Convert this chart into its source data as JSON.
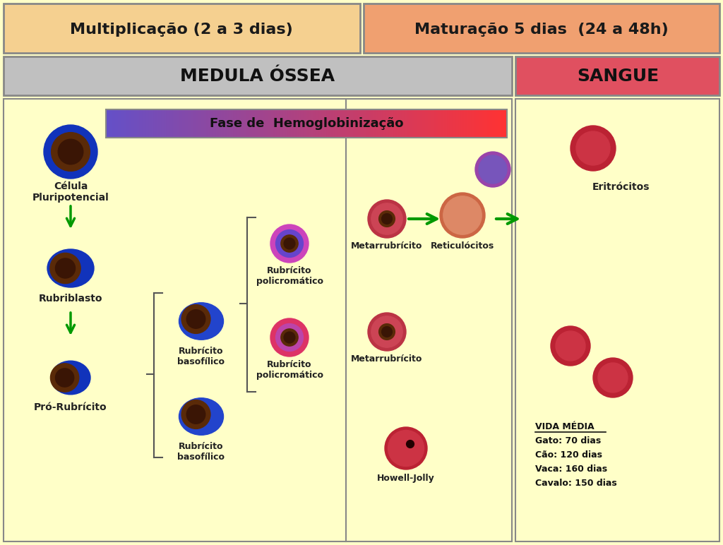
{
  "bg_color": "#FFFFC8",
  "outer_bg": "#FFFFC8",
  "title_left": "Multiplicação (2 a 3 dias)",
  "title_right": "Maturação 5 dias  (24 a 48h)",
  "title_left_bg": "#F5D090",
  "title_right_bg": "#F0A070",
  "header_left": "MEDULA ÓSSEA",
  "header_right": "SANGUE",
  "header_left_bg": "#C0C0C0",
  "header_right_bg": "#E05060",
  "hemo_label": "Fase de  Hemoglobinização",
  "vida_media_title": "VIDA MÉDIA",
  "vida_media_lines": [
    "Gato: 70 dias",
    "Cão: 120 dias",
    "Vaca: 160 dias",
    "Cavalo: 150 dias"
  ],
  "cell_labels": {
    "celula": "Célula\nPluripotencial",
    "rubriblasto": "Rubriblasto",
    "pro_rubricito": "Pró-Rubrícito",
    "rubricito_basof1": "Rubrícito\nbasofílico",
    "rubricito_basof2": "Rubrícito\nbasofílico",
    "rubricito_poli1": "Rubrícito\npolicromático",
    "rubricito_poli2": "Rubrícito\npolicromático",
    "metarubricito1": "Metarrubrícito",
    "metarubricito2": "Metarrubrícito",
    "reticulocitos": "Reticulócitos",
    "eritrocitos": "Eritrócitos",
    "howell_jolly": "Howell-Jolly"
  }
}
